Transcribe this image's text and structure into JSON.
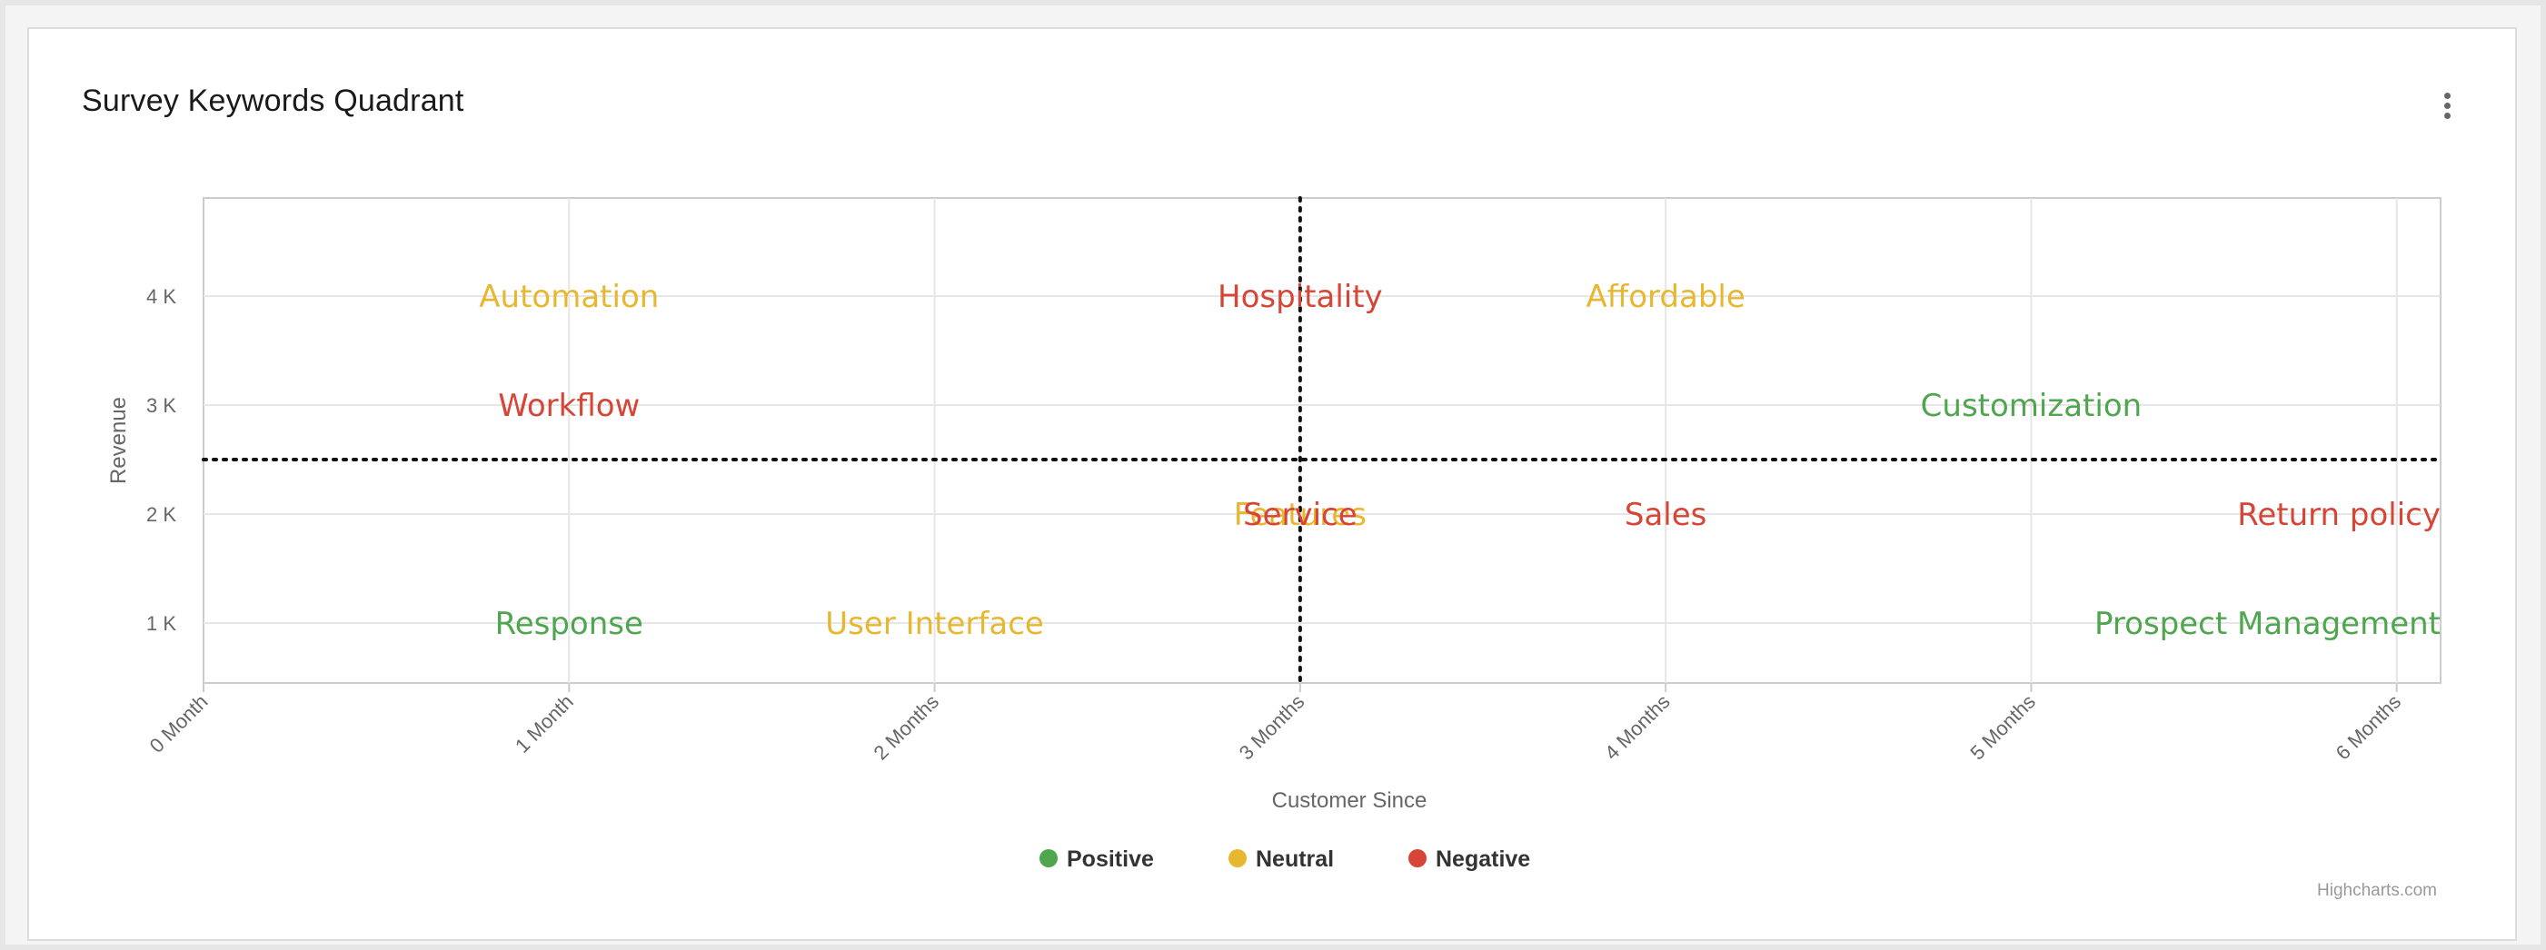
{
  "card": {
    "title": "Survey Keywords Quadrant",
    "menu_icon": "vertical-ellipsis-icon",
    "credits": "Highcharts.com"
  },
  "chart_data": {
    "type": "scatter",
    "xlabel": "Customer Since",
    "ylabel": "Revenue",
    "xlim": [
      0,
      6.12
    ],
    "ylim": [
      450,
      4900
    ],
    "x_ticks": [
      {
        "value": 0,
        "label": "0 Month"
      },
      {
        "value": 1,
        "label": "1 Month"
      },
      {
        "value": 2,
        "label": "2 Months"
      },
      {
        "value": 3,
        "label": "3 Months"
      },
      {
        "value": 4,
        "label": "4 Months"
      },
      {
        "value": 5,
        "label": "5 Months"
      },
      {
        "value": 6,
        "label": "6 Months"
      }
    ],
    "y_ticks": [
      {
        "value": 1000,
        "label": "1 K"
      },
      {
        "value": 2000,
        "label": "2 K"
      },
      {
        "value": 3000,
        "label": "3 K"
      },
      {
        "value": 4000,
        "label": "4 K"
      }
    ],
    "grid": true,
    "reference_lines": {
      "x": 3,
      "y": 2500
    },
    "legend_position": "bottom-center",
    "colors": {
      "Positive": "#4fa64f",
      "Neutral": "#e8b730",
      "Negative": "#d64536"
    },
    "series": [
      {
        "name": "Positive",
        "points": [
          {
            "x": 1,
            "y": 1000,
            "label": "Response"
          },
          {
            "x": 5,
            "y": 3000,
            "label": "Customization"
          },
          {
            "x": 6,
            "y": 1000,
            "label": "Prospect Management"
          }
        ]
      },
      {
        "name": "Neutral",
        "points": [
          {
            "x": 1,
            "y": 4000,
            "label": "Automation"
          },
          {
            "x": 2,
            "y": 1000,
            "label": "User Interface"
          },
          {
            "x": 3,
            "y": 2000,
            "label": "Features"
          },
          {
            "x": 4,
            "y": 4000,
            "label": "Affordable"
          }
        ]
      },
      {
        "name": "Negative",
        "points": [
          {
            "x": 1,
            "y": 3000,
            "label": "Workflow"
          },
          {
            "x": 3,
            "y": 4000,
            "label": "Hospitality"
          },
          {
            "x": 3,
            "y": 2000,
            "label": "Service"
          },
          {
            "x": 4,
            "y": 2000,
            "label": "Sales"
          },
          {
            "x": 6,
            "y": 2000,
            "label": "Return policy"
          }
        ]
      }
    ]
  }
}
